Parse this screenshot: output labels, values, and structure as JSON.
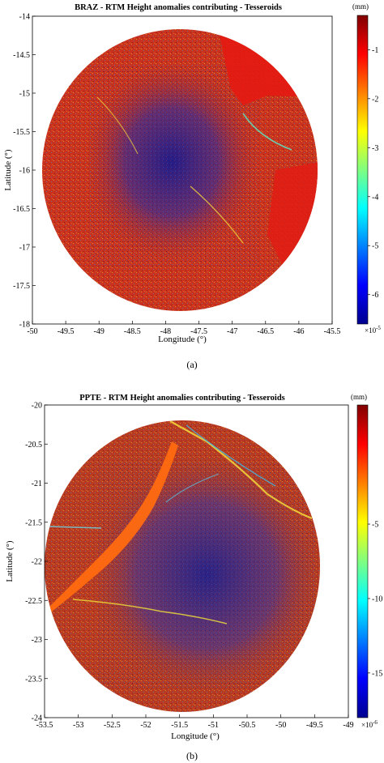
{
  "chart_data": [
    {
      "type": "heatmap",
      "title": "BRAZ - RTM Height anomalies contributing - Tesseroids",
      "xlabel": "Longitude (°)",
      "ylabel": "Latitude (°)",
      "xlim": [
        -50,
        -45.5
      ],
      "ylim": [
        -18,
        -14
      ],
      "xticks": [
        "-50",
        "-49.5",
        "-49",
        "-48.5",
        "-48",
        "-47.5",
        "-47",
        "-46.5",
        "-46",
        "-45.5"
      ],
      "yticks": [
        "-14",
        "-14.5",
        "-15",
        "-15.5",
        "-16",
        "-16.5",
        "-17",
        "-17.5",
        "-18"
      ],
      "colorbar": {
        "unit": "(mm)",
        "ticks": [
          "-1",
          "-2",
          "-3",
          "-4",
          "-5",
          "-6"
        ],
        "range": [
          -6.6,
          -0.3
        ],
        "multiplier": "×10",
        "exponent": "-5"
      },
      "caption": "(a)"
    },
    {
      "type": "heatmap",
      "title": "PPTE - RTM Height anomalies contributing - Tesseroids",
      "xlabel": "Longitude (°)",
      "ylabel": "Latitude (°)",
      "xlim": [
        -53.5,
        -49
      ],
      "ylim": [
        -24,
        -20
      ],
      "xticks": [
        "-53.5",
        "-53",
        "-52.5",
        "-52",
        "-51.5",
        "-51",
        "-50.5",
        "-50",
        "-49.5",
        "-49"
      ],
      "yticks": [
        "-20",
        "-20.5",
        "-21",
        "-21.5",
        "-22",
        "-22.5",
        "-23",
        "-23.5",
        "-24"
      ],
      "colorbar": {
        "unit": "(mm)",
        "ticks": [
          "-5",
          "-10",
          "-15"
        ],
        "range": [
          -18,
          3
        ],
        "multiplier": "×10",
        "exponent": "-6"
      },
      "caption": "(b)"
    }
  ]
}
